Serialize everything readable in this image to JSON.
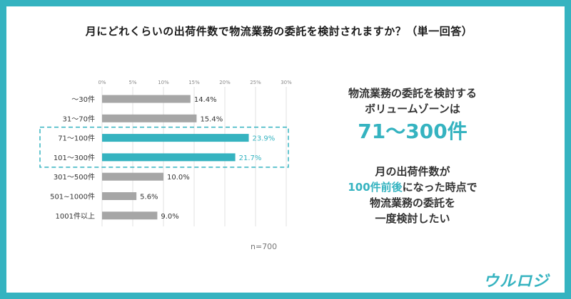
{
  "title": "月にどれくらいの出荷件数で物流業務の委託を検討されますか？（単一回答）",
  "chart_data": {
    "type": "bar",
    "orientation": "horizontal",
    "categories": [
      "～30件",
      "31～70件",
      "71～100件",
      "101～300件",
      "301～500件",
      "501~1000件",
      "1001件以上"
    ],
    "values": [
      14.4,
      15.4,
      23.9,
      21.7,
      10.0,
      5.6,
      9.0
    ],
    "value_labels": [
      "14.4%",
      "15.4%",
      "23.9%",
      "21.7%",
      "10.0%",
      "5.6%",
      "9.0%"
    ],
    "highlight": [
      false,
      false,
      true,
      true,
      false,
      false,
      false
    ],
    "xlim": [
      0,
      30
    ],
    "xticks": [
      0,
      5,
      10,
      15,
      20,
      25,
      30
    ],
    "xtick_labels": [
      "0%",
      "5%",
      "10%",
      "15%",
      "20%",
      "25%",
      "30%"
    ],
    "grid": "vertical",
    "annotation": "n=700",
    "colors": {
      "normal": "#a6a6a6",
      "highlight": "#35b3c0",
      "highlight_label": "#35b3c0",
      "label": "#333333"
    }
  },
  "callout": {
    "line1": "物流業務の委託を検討する",
    "line2": "ボリュームゾーンは",
    "big": "71～300件",
    "line3": "月の出荷件数が",
    "line4_highlight": "100件前後",
    "line4_rest": "になった時点で",
    "line5": "物流業務の委託を",
    "line6": "一度検討したい"
  },
  "brand": {
    "logo": "ウルロジ",
    "accent": "#35b3c0"
  }
}
